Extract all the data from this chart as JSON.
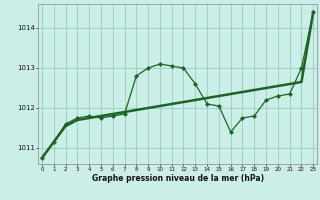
{
  "background_color": "#cceee8",
  "grid_color": "#99ccbb",
  "line_color": "#1a6620",
  "x_ticks": [
    0,
    1,
    2,
    3,
    4,
    5,
    6,
    7,
    8,
    9,
    10,
    11,
    12,
    13,
    14,
    15,
    16,
    17,
    18,
    19,
    20,
    21,
    22,
    23
  ],
  "ylim": [
    1010.6,
    1014.6
  ],
  "yticks": [
    1011,
    1012,
    1013,
    1014
  ],
  "xlabel": "Graphe pression niveau de la mer (hPa)",
  "series_jagged": [
    1010.75,
    1011.15,
    1011.6,
    1011.75,
    1011.8,
    1011.75,
    1011.8,
    1011.85,
    1012.8,
    1013.0,
    1013.1,
    1013.05,
    1013.0,
    1012.6,
    1012.1,
    1012.05,
    1011.4,
    1011.75,
    1011.8,
    1012.2,
    1012.3,
    1012.35,
    1013.0,
    1014.4
  ],
  "series_trend": [
    1010.75,
    1011.15,
    1011.55,
    1011.7,
    1011.75,
    1011.8,
    1011.85,
    1011.9,
    1011.95,
    1012.0,
    1012.05,
    1012.1,
    1012.15,
    1012.2,
    1012.25,
    1012.3,
    1012.35,
    1012.4,
    1012.45,
    1012.5,
    1012.55,
    1012.6,
    1012.65,
    1014.4
  ]
}
